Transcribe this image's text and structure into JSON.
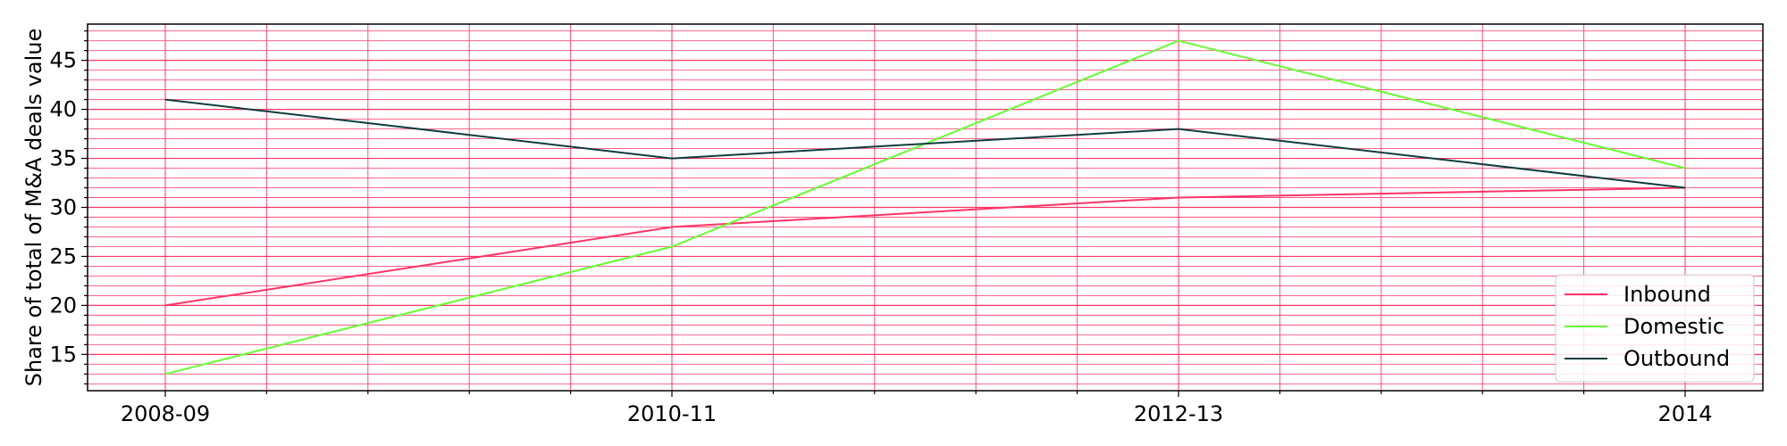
{
  "chart_data": {
    "type": "line",
    "categories": [
      "2008-09",
      "2010-11",
      "2012-13",
      "2014"
    ],
    "series": [
      {
        "name": "Inbound",
        "values": [
          20,
          28,
          31,
          32
        ],
        "color": "#ff3366"
      },
      {
        "name": "Domestic",
        "values": [
          13,
          26,
          47,
          34
        ],
        "color": "#66ff33"
      },
      {
        "name": "Outbound",
        "values": [
          41,
          35,
          38,
          32
        ],
        "color": "#0f3d3e"
      }
    ],
    "title": "",
    "xlabel": "",
    "ylabel": "Share of total of M&A deals value",
    "ylim": [
      11.3,
      48.7
    ],
    "yticks": [
      15,
      20,
      25,
      30,
      35,
      40,
      45
    ],
    "grid": true,
    "grid_color": "#ff3366",
    "legend_position": "lower-right"
  }
}
